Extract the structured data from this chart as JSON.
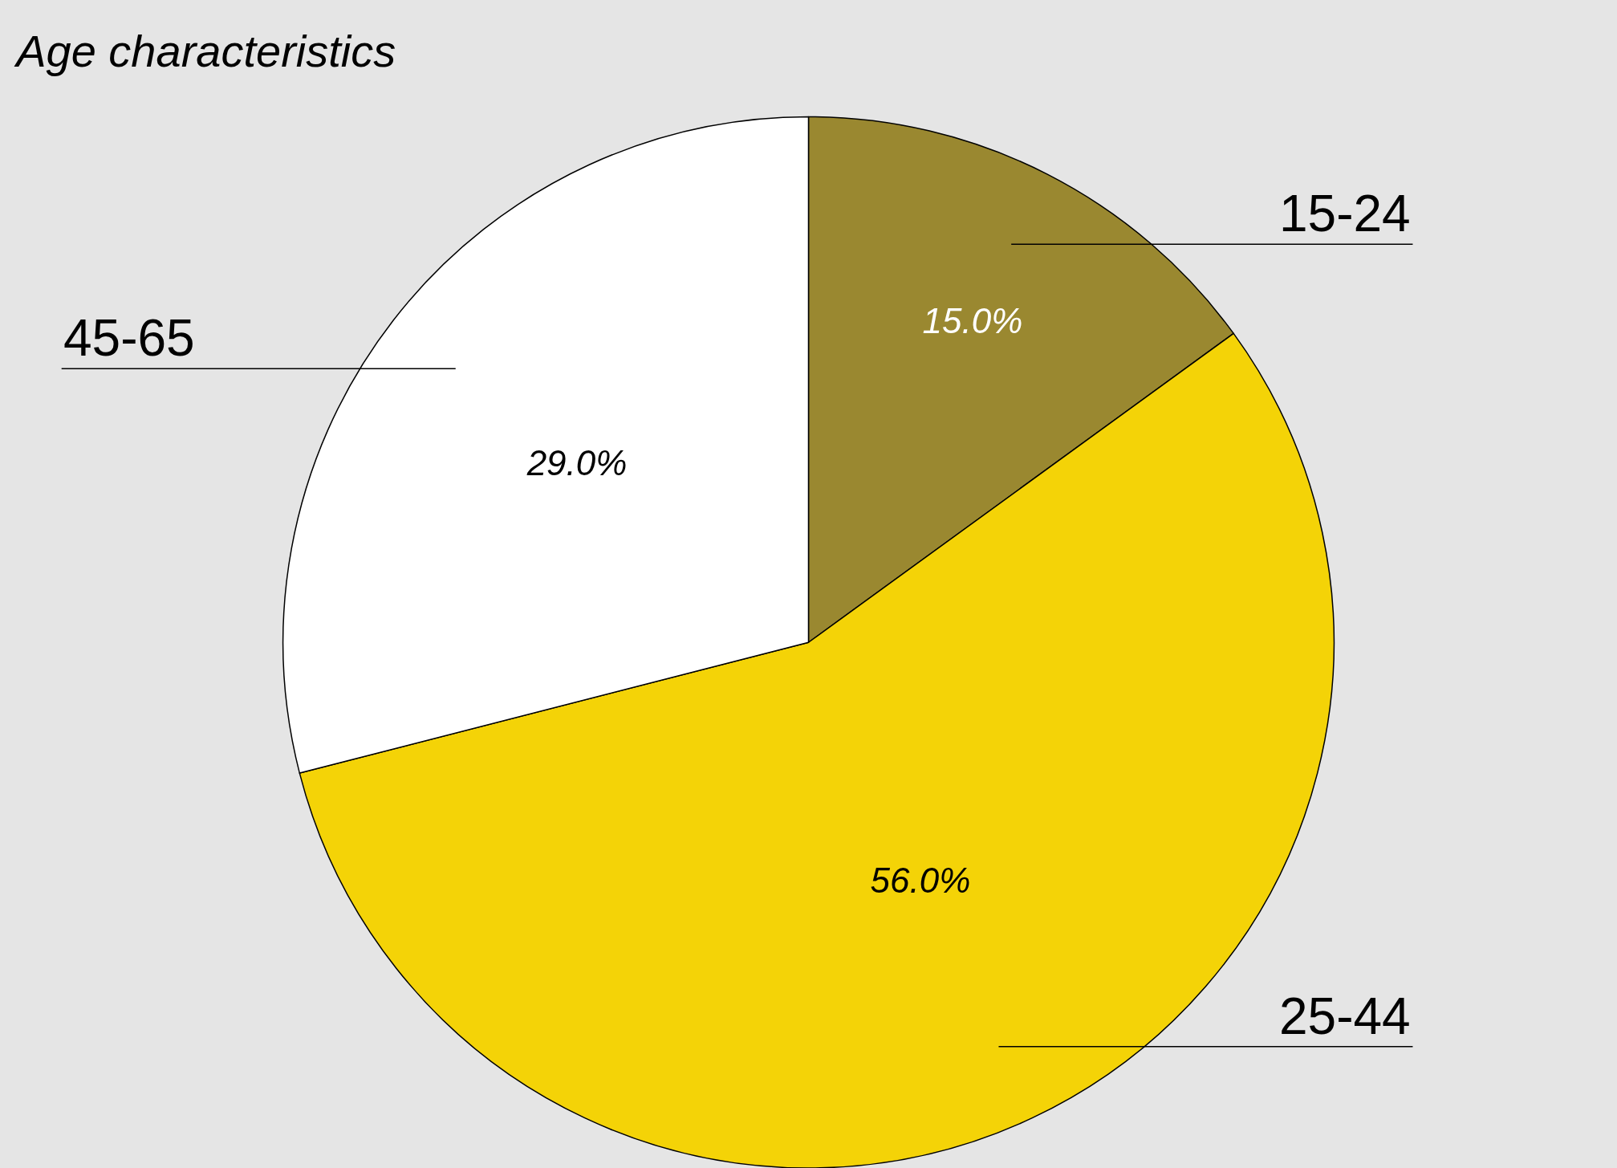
{
  "chart_data": {
    "type": "pie",
    "title": "Age characteristics",
    "categories": [
      "15-24",
      "25-44",
      "45-65"
    ],
    "values": [
      15.0,
      56.0,
      29.0
    ],
    "value_labels": [
      "15.0%",
      "56.0%",
      "29.0%"
    ],
    "colors": [
      "#9a8830",
      "#f4d307",
      "#ffffff"
    ],
    "legend": false
  }
}
